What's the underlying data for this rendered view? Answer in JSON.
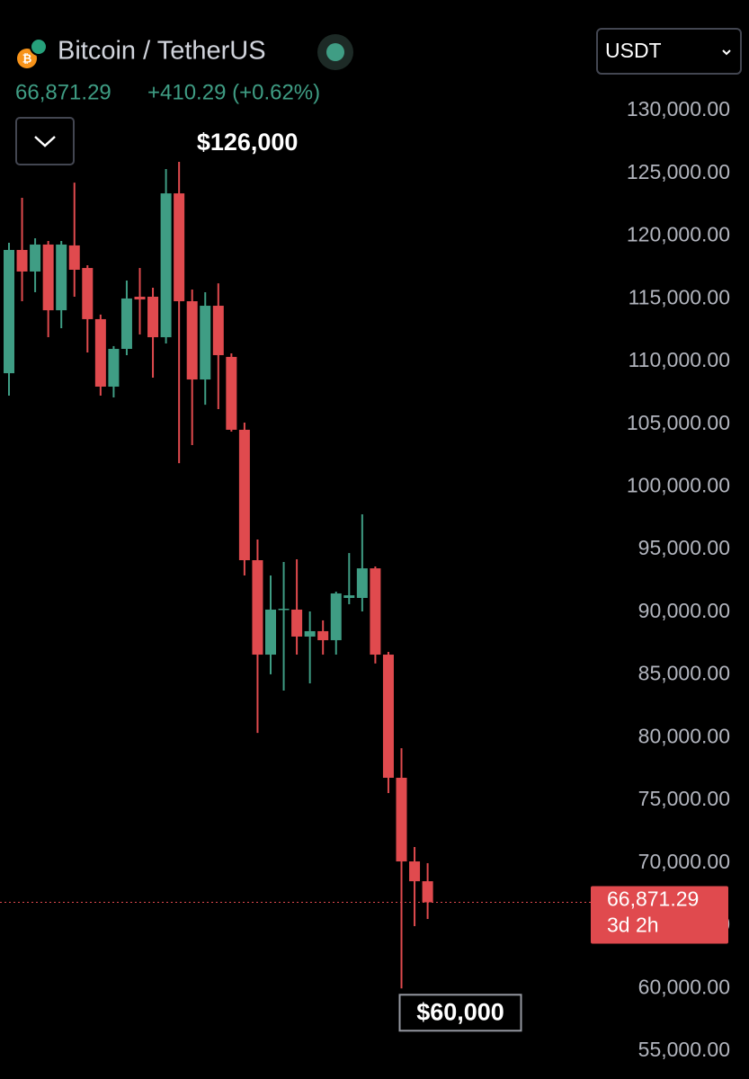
{
  "header": {
    "title": "Bitcoin / TetherUS",
    "change": "+410.29 (+0.62%)",
    "currency": "USDT"
  },
  "chart_data": {
    "type": "candlestick",
    "up_color": "#3f9d84",
    "down_color": "#e04a4e",
    "open": [
      109060,
      118890,
      117170,
      119320,
      114080,
      119250,
      117450,
      113370,
      107990,
      111000,
      115160,
      115160,
      111930,
      123400,
      114800,
      108560,
      114440,
      110360,
      104550,
      94150,
      86620,
      90210,
      90210,
      88060,
      88490,
      87770,
      91140,
      91140,
      93500,
      86620,
      76800,
      70130,
      68550
    ],
    "high": [
      119460,
      123050,
      119820,
      119600,
      119600,
      124260,
      117670,
      113730,
      111220,
      116450,
      117450,
      115880,
      125340,
      125910,
      115730,
      115520,
      116230,
      110640,
      105120,
      95800,
      92930,
      94010,
      94220,
      90060,
      89350,
      91640,
      94720,
      97810,
      93650,
      86840,
      79160,
      71280,
      69990
    ],
    "low": [
      107270,
      114800,
      115520,
      111930,
      112650,
      115160,
      110710,
      107270,
      107130,
      110500,
      112150,
      108710,
      111430,
      101890,
      103330,
      106550,
      106200,
      104400,
      92930,
      80380,
      85050,
      83750,
      86620,
      84330,
      86620,
      86620,
      90640,
      90060,
      85910,
      75580,
      60000,
      64970,
      65540
    ],
    "close": [
      118890,
      117170,
      119320,
      114080,
      119320,
      117310,
      113370,
      107990,
      111000,
      115020,
      114940,
      111930,
      123400,
      114800,
      108560,
      114440,
      110500,
      104550,
      94150,
      86620,
      90210,
      90280,
      88060,
      88490,
      87770,
      91500,
      91350,
      93500,
      86620,
      76800,
      70130,
      68550,
      66871.29
    ],
    "current_price": {
      "value": 66871.29,
      "label": "66,871.29"
    },
    "countdown": "3d 2h",
    "annotations": [
      "$126,000",
      "$60,000"
    ],
    "ylim": [
      52780,
      138820
    ],
    "yticks": [
      {
        "value": 55000,
        "label": "55,000.00"
      },
      {
        "value": 60000,
        "label": "60,000.00"
      },
      {
        "value": 65000,
        "label": "65,000.00"
      },
      {
        "value": 70000,
        "label": "70,000.00"
      },
      {
        "value": 75000,
        "label": "75,000.00"
      },
      {
        "value": 80000,
        "label": "80,000.00"
      },
      {
        "value": 85000,
        "label": "85,000.00"
      },
      {
        "value": 90000,
        "label": "90,000.00"
      },
      {
        "value": 95000,
        "label": "95,000.00"
      },
      {
        "value": 100000,
        "label": "100,000.00"
      },
      {
        "value": 105000,
        "label": "105,000.00"
      },
      {
        "value": 110000,
        "label": "110,000.00"
      },
      {
        "value": 115000,
        "label": "115,000.00"
      },
      {
        "value": 120000,
        "label": "120,000.00"
      },
      {
        "value": 125000,
        "label": "125,000.00"
      },
      {
        "value": 130000,
        "label": "130,000.00"
      }
    ]
  }
}
